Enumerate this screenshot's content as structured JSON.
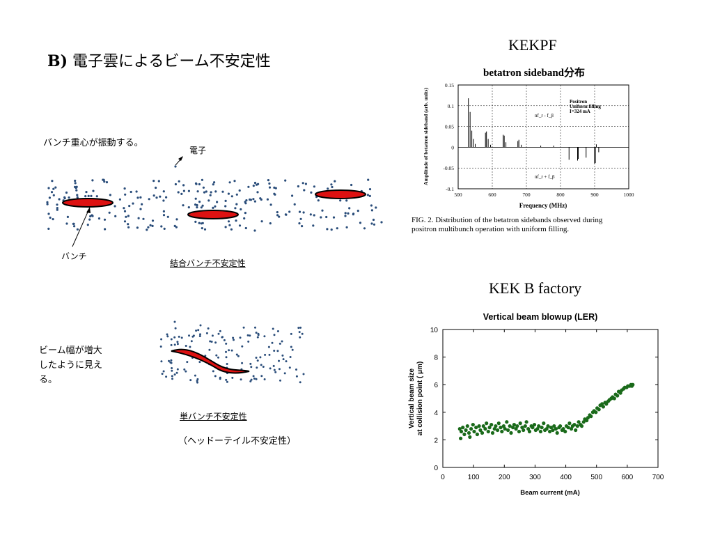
{
  "slide": {
    "title_prefix": "B)",
    "title_text": " 電子雲によるビーム不安定性",
    "left": {
      "caption_bunch_oscillation": "バンチ重心が振動する。",
      "label_electron": "電子",
      "label_bunch": "バンチ",
      "label_coupled": "結合バンチ不安定性",
      "caption_beam_width": [
        "ビーム幅が増大",
        "したように見え",
        "る。"
      ],
      "label_single": "単バンチ不安定性",
      "label_headtail": "（ヘッドーテイル不安定性）"
    },
    "kekpf": {
      "header": "KEKPF",
      "subtitle": "betatron sideband分布",
      "fig_caption_line1": "FIG. 2.    Distribution of the betatron sidebands observed during",
      "fig_caption_line2": "positron multibunch operation with uniform filling."
    },
    "kekb": {
      "header": "KEK B factory"
    }
  },
  "chart_data": [
    {
      "type": "line",
      "title": "",
      "xlabel": "Frequency  (MHz)",
      "ylabel": "Amplitude of betatron sideband (arb. units)",
      "xlim": [
        500,
        1000
      ],
      "ylim": [
        -0.1,
        0.15
      ],
      "x_ticks": [
        "500",
        "600",
        "700",
        "800",
        "900",
        "1000"
      ],
      "y_ticks": [
        "-0.1",
        "-0.05",
        "0",
        "0.05",
        "0.1",
        "0.15"
      ],
      "grid": "dashed",
      "annotations": [
        "Positron",
        "Uniform  filling",
        "I=324  mA",
        "nf_r - f_β",
        "nf_r + f_β"
      ],
      "series": [
        {
          "name": "nf_r - f_β",
          "points": [
            [
              530,
              0.118
            ],
            [
              535,
              0.085
            ],
            [
              540,
              0.04
            ],
            [
              545,
              0.02
            ],
            [
              550,
              0.008
            ],
            [
              580,
              0.035
            ],
            [
              583,
              0.038
            ],
            [
              588,
              0.02
            ],
            [
              595,
              0.006
            ],
            [
              632,
              0.03
            ],
            [
              635,
              0.028
            ],
            [
              640,
              0.012
            ],
            [
              675,
              0.015
            ],
            [
              678,
              0.018
            ],
            [
              685,
              0.006
            ],
            [
              742,
              0.004
            ],
            [
              780,
              0.004
            ],
            [
              905,
              0.007
            ]
          ]
        },
        {
          "name": "nf_r + f_β",
          "points": [
            [
              825,
              -0.03
            ],
            [
              850,
              -0.032
            ],
            [
              852,
              -0.028
            ],
            [
              875,
              -0.025
            ],
            [
              900,
              -0.04
            ],
            [
              902,
              -0.038
            ],
            [
              912,
              -0.012
            ]
          ]
        }
      ]
    },
    {
      "type": "scatter",
      "title": "Vertical beam blowup (LER)",
      "xlabel": "Beam current (mA)",
      "ylabel": "Vertical beam size at collision point ( μm)",
      "xlim": [
        0,
        700
      ],
      "ylim": [
        0,
        10
      ],
      "x_ticks": [
        "0",
        "100",
        "200",
        "300",
        "400",
        "500",
        "600",
        "700"
      ],
      "y_ticks": [
        "0",
        "2",
        "4",
        "6",
        "8",
        "10"
      ],
      "color": "#1a6a1a",
      "series": [
        {
          "points": [
            [
              55,
              2.8
            ],
            [
              58,
              2.1
            ],
            [
              60,
              2.6
            ],
            [
              65,
              2.9
            ],
            [
              70,
              2.4
            ],
            [
              75,
              2.7
            ],
            [
              80,
              3.0
            ],
            [
              85,
              2.5
            ],
            [
              88,
              2.2
            ],
            [
              92,
              2.8
            ],
            [
              98,
              3.1
            ],
            [
              102,
              2.6
            ],
            [
              108,
              2.9
            ],
            [
              112,
              2.4
            ],
            [
              118,
              3.0
            ],
            [
              122,
              2.7
            ],
            [
              128,
              2.5
            ],
            [
              132,
              3.0
            ],
            [
              138,
              2.8
            ],
            [
              142,
              3.2
            ],
            [
              148,
              2.6
            ],
            [
              152,
              2.9
            ],
            [
              158,
              3.1
            ],
            [
              162,
              2.5
            ],
            [
              168,
              2.8
            ],
            [
              172,
              3.0
            ],
            [
              178,
              2.7
            ],
            [
              182,
              3.2
            ],
            [
              188,
              2.9
            ],
            [
              192,
              2.6
            ],
            [
              198,
              3.0
            ],
            [
              202,
              2.8
            ],
            [
              208,
              3.3
            ],
            [
              212,
              2.7
            ],
            [
              218,
              3.0
            ],
            [
              222,
              2.5
            ],
            [
              228,
              2.9
            ],
            [
              232,
              3.1
            ],
            [
              238,
              2.8
            ],
            [
              242,
              3.0
            ],
            [
              248,
              2.6
            ],
            [
              252,
              3.2
            ],
            [
              258,
              2.9
            ],
            [
              262,
              2.7
            ],
            [
              268,
              3.0
            ],
            [
              272,
              3.3
            ],
            [
              278,
              2.8
            ],
            [
              282,
              2.6
            ],
            [
              288,
              3.0
            ],
            [
              292,
              2.9
            ],
            [
              298,
              3.1
            ],
            [
              302,
              2.7
            ],
            [
              308,
              2.8
            ],
            [
              312,
              3.0
            ],
            [
              318,
              2.6
            ],
            [
              322,
              2.9
            ],
            [
              328,
              3.2
            ],
            [
              332,
              2.7
            ],
            [
              338,
              2.8
            ],
            [
              342,
              3.0
            ],
            [
              348,
              2.6
            ],
            [
              352,
              2.9
            ],
            [
              358,
              2.7
            ],
            [
              362,
              3.0
            ],
            [
              368,
              2.8
            ],
            [
              372,
              2.5
            ],
            [
              378,
              2.9
            ],
            [
              382,
              3.0
            ],
            [
              388,
              2.7
            ],
            [
              392,
              2.8
            ],
            [
              398,
              2.6
            ],
            [
              402,
              3.0
            ],
            [
              408,
              2.9
            ],
            [
              412,
              3.2
            ],
            [
              418,
              2.8
            ],
            [
              422,
              3.0
            ],
            [
              428,
              3.1
            ],
            [
              432,
              2.7
            ],
            [
              438,
              3.0
            ],
            [
              442,
              3.3
            ],
            [
              448,
              3.1
            ],
            [
              452,
              3.0
            ],
            [
              458,
              3.3
            ],
            [
              462,
              3.5
            ],
            [
              468,
              3.4
            ],
            [
              472,
              3.6
            ],
            [
              478,
              3.8
            ],
            [
              482,
              3.7
            ],
            [
              488,
              4.0
            ],
            [
              492,
              4.1
            ],
            [
              498,
              4.0
            ],
            [
              502,
              4.3
            ],
            [
              508,
              4.2
            ],
            [
              512,
              4.5
            ],
            [
              518,
              4.6
            ],
            [
              522,
              4.4
            ],
            [
              528,
              4.7
            ],
            [
              532,
              4.6
            ],
            [
              538,
              4.8
            ],
            [
              542,
              4.9
            ],
            [
              548,
              5.0
            ],
            [
              552,
              5.1
            ],
            [
              558,
              5.0
            ],
            [
              562,
              5.3
            ],
            [
              568,
              5.2
            ],
            [
              572,
              5.5
            ],
            [
              578,
              5.4
            ],
            [
              582,
              5.6
            ],
            [
              588,
              5.7
            ],
            [
              592,
              5.8
            ],
            [
              598,
              5.8
            ],
            [
              602,
              5.9
            ],
            [
              608,
              5.9
            ],
            [
              612,
              6.0
            ],
            [
              615,
              5.9
            ],
            [
              618,
              6.0
            ]
          ]
        }
      ]
    }
  ]
}
